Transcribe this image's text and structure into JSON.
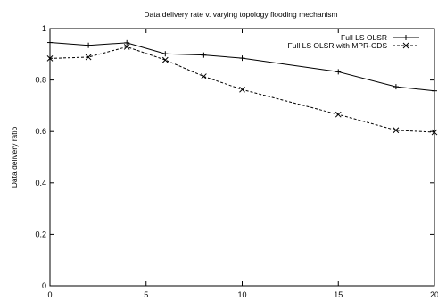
{
  "chart_data": {
    "type": "line",
    "title": "Data delivery rate v. varying topology flooding mechanism",
    "xlabel": "",
    "ylabel": "Data delivery ratio",
    "xlim": [
      0,
      20
    ],
    "ylim": [
      0,
      1
    ],
    "xticks": [
      0,
      5,
      10,
      15,
      20
    ],
    "yticks": [
      0,
      0.2,
      0.4,
      0.6,
      0.8,
      1
    ],
    "xtick_labels": [
      "0",
      "5",
      "10",
      "15",
      "20"
    ],
    "ytick_labels": [
      "0",
      "0.2",
      "0.4",
      "0.6",
      "0.8",
      "1"
    ],
    "grid": false,
    "legend_position": "top-right",
    "series": [
      {
        "name": "Full LS OLSR",
        "marker": "plus",
        "line_style": "solid",
        "color": "#000000",
        "x": [
          0,
          2,
          4,
          6,
          8,
          10,
          15,
          18,
          20
        ],
        "y": [
          0.946,
          0.935,
          0.945,
          0.902,
          0.897,
          0.885,
          0.832,
          0.774,
          0.758
        ]
      },
      {
        "name": "Full LS OLSR with MPR-CDS",
        "marker": "cross",
        "line_style": "dashed",
        "color": "#000000",
        "x": [
          0,
          2,
          4,
          6,
          8,
          10,
          15,
          18,
          20
        ],
        "y": [
          0.884,
          0.889,
          0.929,
          0.878,
          0.814,
          0.763,
          0.666,
          0.605,
          0.597
        ]
      }
    ]
  }
}
